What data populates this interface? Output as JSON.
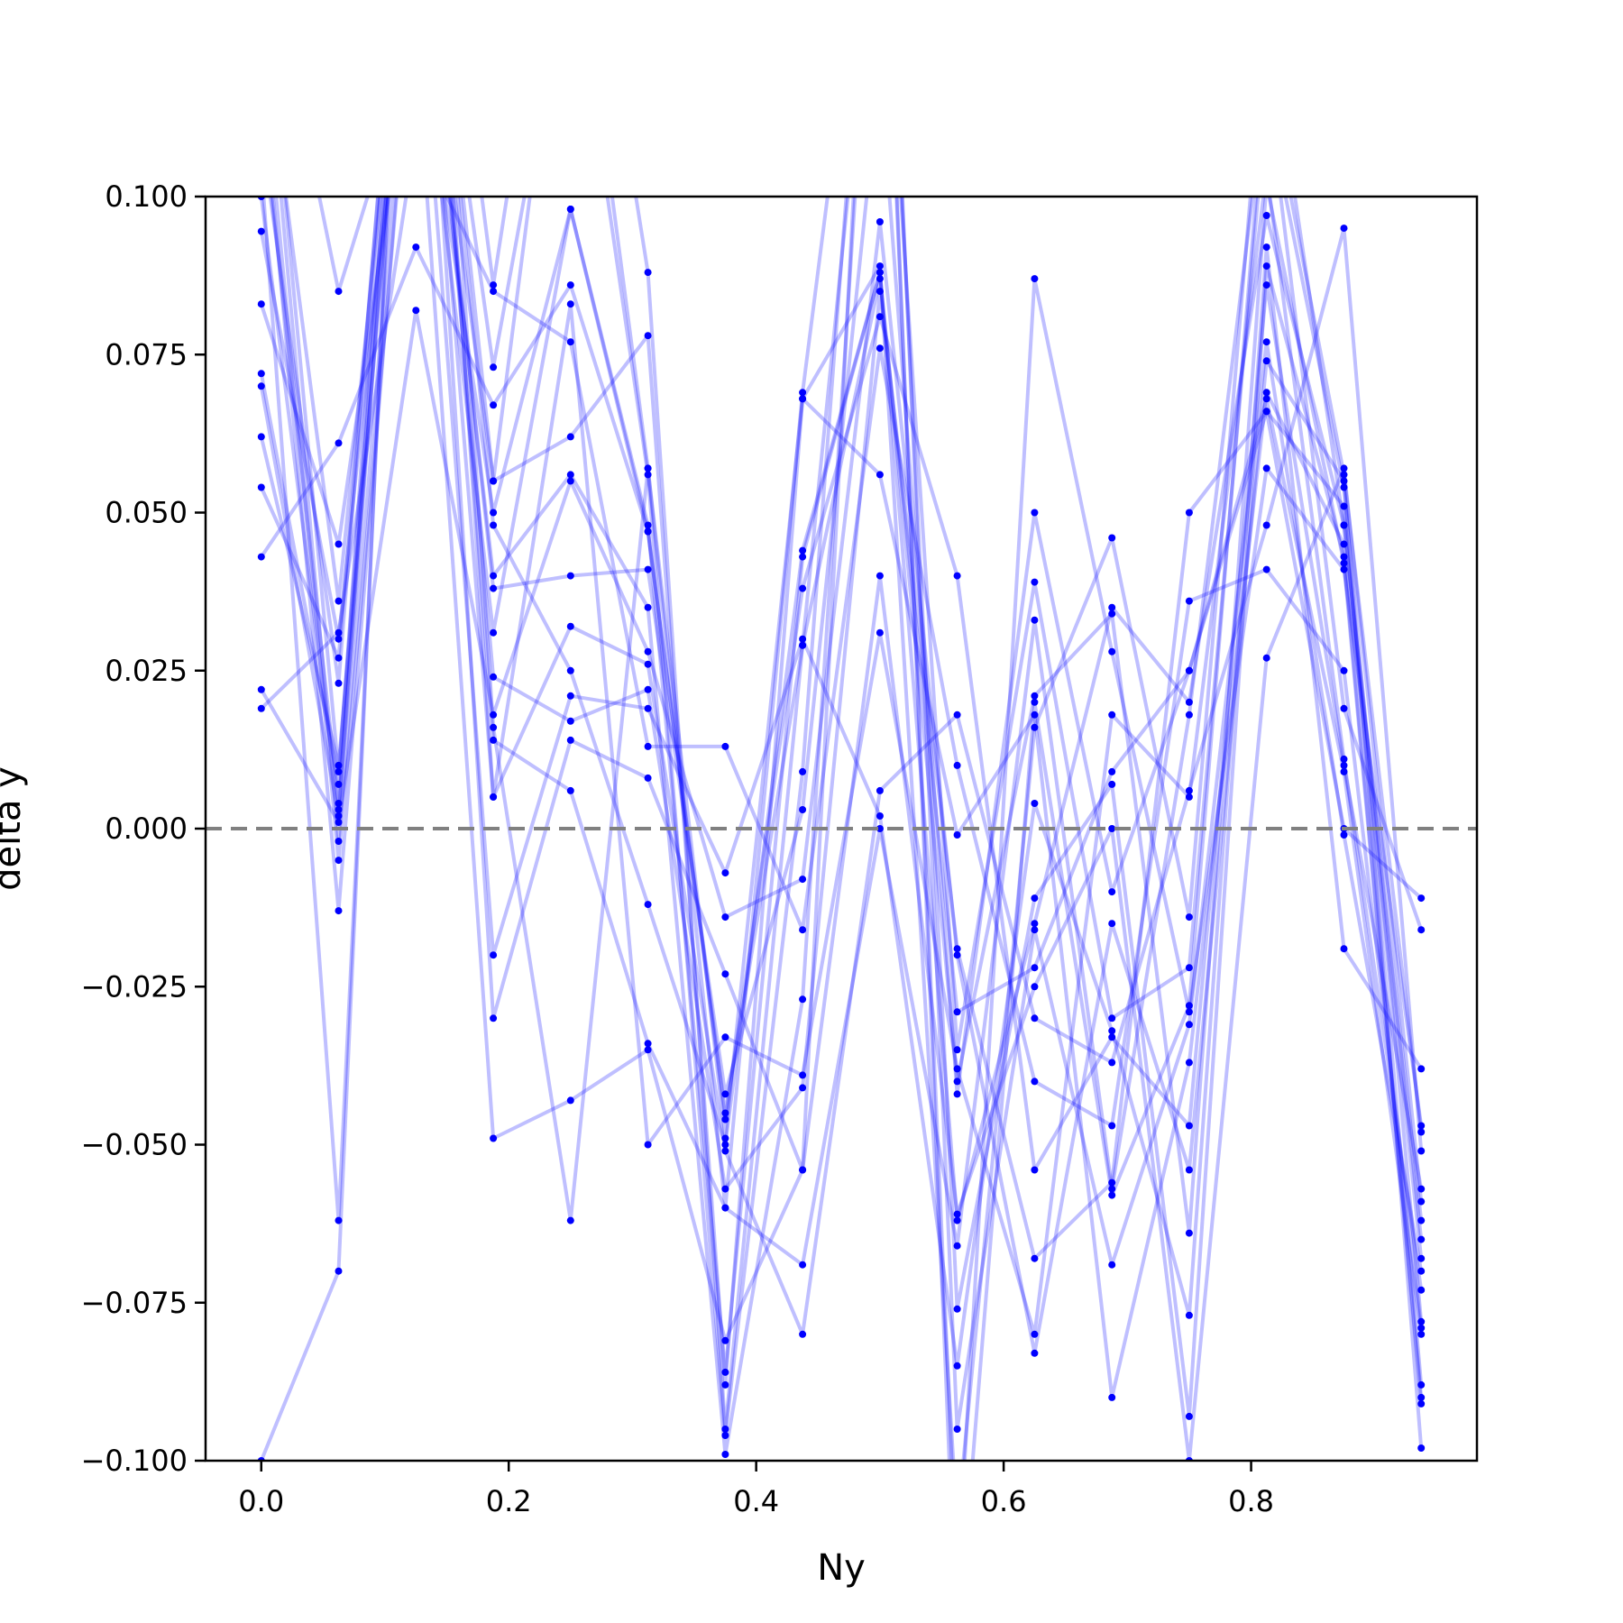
{
  "chart_data": {
    "type": "line",
    "title": "",
    "xlabel": "Ny",
    "ylabel": "delta y",
    "xlim": [
      -0.045,
      0.9825
    ],
    "ylim": [
      -0.1,
      0.1
    ],
    "grid": false,
    "legend": "none",
    "x_ticks": [
      0.0,
      0.2,
      0.4,
      0.6,
      0.8
    ],
    "x_tick_labels": [
      "0.0",
      "0.2",
      "0.4",
      "0.6",
      "0.8"
    ],
    "y_ticks": [
      0.1,
      0.075,
      0.05,
      0.025,
      0.0,
      -0.025,
      -0.05,
      -0.075,
      -0.1
    ],
    "y_tick_labels": [
      "0.100",
      "0.075",
      "0.050",
      "0.025",
      "0.000",
      "−0.025",
      "−0.050",
      "−0.075",
      "−0.100"
    ],
    "reference_line": {
      "y": 0.0,
      "style": "dashed",
      "color": "#808080"
    },
    "line_color": "#0000ff",
    "point_color": "#0000ff",
    "line_opacity": 0.25,
    "x": [
      0.0,
      0.0625,
      0.125,
      0.1875,
      0.25,
      0.3125,
      0.375,
      0.4375,
      0.5,
      0.5625,
      0.625,
      0.6875,
      0.75,
      0.8125,
      0.875,
      0.9375
    ],
    "series": [
      {
        "values": [
          0.0945,
          0.03,
          0.145,
          0.055,
          0.15,
          0.057,
          -0.06,
          0.069,
          0.165,
          -0.13,
          0.02,
          -0.058,
          -0.028,
          0.12,
          0.056,
          -0.048
        ]
      },
      {
        "values": [
          0.083,
          0.045,
          0.13,
          0.05,
          0.098,
          0.048,
          -0.086,
          0.043,
          0.088,
          -0.062,
          -0.015,
          0.035,
          0.02,
          0.097,
          0.048,
          -0.062
        ]
      },
      {
        "values": [
          0.072,
          0.007,
          0.18,
          0.086,
          0.165,
          0.088,
          -0.095,
          0.029,
          0.15,
          -0.035,
          0.039,
          -0.03,
          -0.022,
          0.115,
          0.054,
          -0.078
        ]
      },
      {
        "values": [
          0.07,
          0.002,
          0.16,
          0.073,
          0.14,
          0.056,
          -0.096,
          0.009,
          0.17,
          -0.076,
          -0.011,
          0.007,
          -0.093,
          0.089,
          0.043,
          -0.09
        ]
      },
      {
        "values": [
          0.062,
          0.01,
          0.15,
          0.038,
          0.04,
          0.041,
          -0.042,
          0.003,
          0.12,
          -0.042,
          0.05,
          -0.01,
          0.025,
          0.066,
          0.051,
          -0.088
        ]
      },
      {
        "values": [
          0.054,
          0.027,
          0.17,
          0.055,
          0.062,
          0.078,
          -0.088,
          0.068,
          0.089,
          -0.11,
          0.016,
          0.046,
          -0.014,
          0.13,
          0.048,
          -0.065
        ]
      },
      {
        "values": [
          0.043,
          0.061,
          0.092,
          0.067,
          0.086,
          0.047,
          -0.046,
          0.038,
          0.081,
          0.04,
          -0.054,
          -0.033,
          -0.047,
          0.086,
          0.01,
          -0.057
        ]
      },
      {
        "values": [
          0.022,
          0.001,
          0.082,
          0.018,
          0.055,
          0.028,
          -0.014,
          -0.008,
          0.096,
          -0.02,
          -0.083,
          -0.015,
          -0.054,
          0.074,
          0.055,
          -0.098
        ]
      },
      {
        "values": [
          0.019,
          0.031,
          0.11,
          0.085,
          0.077,
          0.013,
          0.013,
          -0.016,
          0.076,
          0.01,
          -0.04,
          -0.047,
          0.036,
          0.041,
          0.025,
          -0.079
        ]
      },
      {
        "values": [
          -0.1,
          -0.07,
          0.2,
          0.016,
          -0.062,
          0.057,
          -0.049,
          0.068,
          0.056,
          -0.001,
          0.018,
          -0.09,
          -0.037,
          0.069,
          0.045,
          -0.068
        ]
      },
      {
        "values": [
          0.105,
          -0.062,
          0.19,
          0.005,
          0.083,
          -0.05,
          -0.033,
          -0.039,
          0.031,
          -0.038,
          -0.08,
          0.018,
          0.005,
          0.104,
          0.011,
          -0.073
        ]
      },
      {
        "values": [
          0.12,
          -0.013,
          0.14,
          -0.02,
          0.021,
          0.019,
          -0.007,
          0.03,
          0.002,
          -0.085,
          0.004,
          -0.032,
          -0.077,
          0.092,
          -0.019,
          -0.038
        ]
      },
      {
        "values": [
          0.11,
          0.023,
          0.175,
          0.014,
          0.006,
          -0.034,
          -0.06,
          -0.069,
          0.0,
          -0.066,
          0.033,
          -0.057,
          0.018,
          0.118,
          0.019,
          -0.016
        ]
      },
      {
        "values": [
          0.13,
          0.036,
          0.155,
          0.005,
          0.032,
          0.026,
          -0.051,
          -0.08,
          0.006,
          0.018,
          -0.03,
          -0.037,
          0.006,
          0.048,
          0.095,
          -0.051
        ]
      },
      {
        "values": [
          0.14,
          0.009,
          0.165,
          -0.03,
          0.014,
          0.008,
          -0.023,
          -0.054,
          0.04,
          -0.061,
          -0.025,
          0.0,
          -0.1,
          0.027,
          0.057,
          -0.059
        ]
      },
      {
        "values": [
          0.125,
          -0.005,
          0.135,
          0.031,
          0.098,
          0.047,
          -0.045,
          0.029,
          0.087,
          -0.029,
          -0.022,
          0.009,
          0.025,
          0.068,
          0.009,
          -0.08
        ]
      },
      {
        "values": [
          0.115,
          0.004,
          0.16,
          0.024,
          0.017,
          0.022,
          -0.057,
          -0.041,
          0.085,
          -0.019,
          -0.068,
          -0.056,
          0.05,
          0.066,
          0.0,
          -0.011
        ]
      },
      {
        "values": [
          0.135,
          -0.002,
          0.145,
          0.04,
          0.056,
          0.035,
          -0.099,
          -0.027,
          0.16,
          -0.12,
          0.087,
          0.028,
          -0.029,
          0.057,
          0.041,
          -0.047
        ]
      },
      {
        "values": [
          0.1,
          0.003,
          0.17,
          0.048,
          0.025,
          -0.012,
          -0.05,
          0.044,
          0.088,
          -0.04,
          0.021,
          0.034,
          -0.064,
          0.102,
          0.042,
          -0.091
        ]
      },
      {
        "values": [
          0.145,
          0.085,
          0.125,
          -0.049,
          -0.043,
          -0.035,
          -0.081,
          -0.054,
          0.18,
          -0.095,
          -0.016,
          -0.069,
          -0.031,
          0.077,
          -0.001,
          -0.07
        ]
      }
    ]
  }
}
